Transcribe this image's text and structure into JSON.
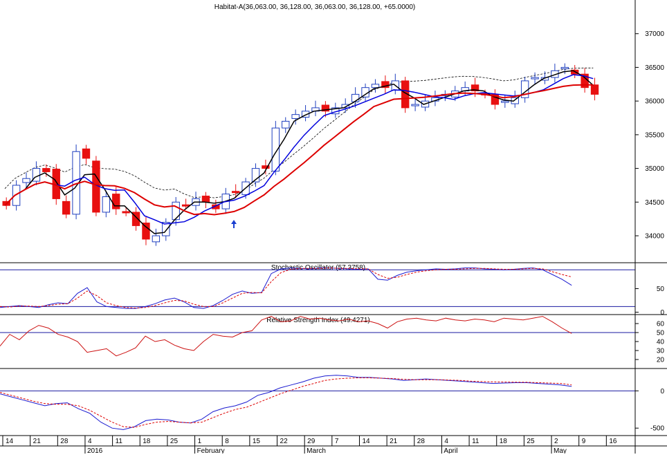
{
  "chart_data": [
    {
      "type": "candlestick",
      "title": "Habitat-A(36,063.00, 36,128.00, 36,063.00, 36,128.00, +65.0000)",
      "ylim": [
        33600,
        37500
      ],
      "y_ticks": [
        "34000",
        "34500",
        "35000",
        "35500",
        "36000",
        "36500",
        "37000"
      ],
      "series": [
        {
          "name": "close",
          "values": [
            34450,
            34750,
            34850,
            35000,
            34950,
            34550,
            34320,
            35250,
            35150,
            34350,
            34580,
            34400,
            34350,
            34150,
            33950,
            34000,
            34200,
            34500,
            34450,
            34550,
            34500,
            34400,
            34620,
            34650,
            34800,
            35000,
            35000,
            35600,
            35700,
            35800,
            35850,
            35900,
            35850,
            35900,
            35950,
            36100,
            36200,
            36250,
            36200,
            36300,
            35900,
            35950,
            36000,
            36050,
            36100,
            36150,
            36200,
            36150,
            36100,
            35950,
            36000,
            36050,
            36300,
            36350,
            36350,
            36450,
            36500,
            36400,
            36200,
            36100
          ]
        }
      ],
      "colors": {
        "up_candle": "#1f3fbf",
        "down_candle": "#e81010",
        "ma_fast": "#000000",
        "ma_mid": "#0000dd",
        "ma_slow": "#dd0000",
        "envelope": "#000000"
      }
    },
    {
      "type": "line",
      "title": "Stochastic Oscillator (57.3758)",
      "ylim": [
        0,
        100
      ],
      "y_ticks": [
        "0",
        "50"
      ],
      "reference_lines": [
        12,
        90
      ],
      "series": [
        {
          "values": [
            10,
            12,
            14,
            12,
            10,
            16,
            20,
            18,
            40,
            52,
            22,
            12,
            10,
            8,
            8,
            12,
            18,
            26,
            30,
            22,
            10,
            8,
            14,
            25,
            38,
            45,
            40,
            42,
            82,
            92,
            94,
            93,
            92,
            94,
            94,
            93,
            92,
            91,
            92,
            70,
            68,
            78,
            85,
            88,
            90,
            92,
            91,
            92,
            94,
            94,
            92,
            91,
            90,
            91,
            93,
            94,
            90,
            80,
            70,
            57
          ]
        },
        {
          "values": [
            12,
            11,
            13,
            13,
            12,
            14,
            17,
            18,
            30,
            45,
            35,
            20,
            14,
            10,
            9,
            10,
            14,
            20,
            25,
            24,
            17,
            12,
            12,
            20,
            30,
            40,
            42,
            41,
            65,
            84,
            91,
            93,
            93,
            93,
            94,
            93,
            93,
            92,
            92,
            80,
            72,
            74,
            80,
            85,
            88,
            90,
            91,
            91,
            92,
            93,
            93,
            92,
            91,
            91,
            92,
            93,
            92,
            86,
            80,
            75
          ]
        }
      ]
    },
    {
      "type": "line",
      "title": "Relative Strength Index (49.4271)",
      "ylim": [
        10,
        70
      ],
      "y_ticks": [
        "20",
        "30",
        "40",
        "50",
        "60"
      ],
      "reference_lines": [
        50
      ],
      "series": [
        {
          "values": [
            35,
            48,
            42,
            52,
            58,
            55,
            48,
            45,
            40,
            28,
            30,
            32,
            24,
            28,
            33,
            46,
            40,
            42,
            36,
            32,
            30,
            40,
            48,
            46,
            45,
            50,
            52,
            64,
            68,
            62,
            63,
            68,
            65,
            66,
            64,
            63,
            65,
            62,
            63,
            60,
            55,
            62,
            65,
            66,
            64,
            63,
            66,
            64,
            63,
            65,
            64,
            62,
            66,
            65,
            64,
            66,
            68,
            62,
            55,
            49
          ]
        }
      ]
    },
    {
      "type": "line",
      "title": "",
      "ylim": [
        -600,
        300
      ],
      "y_ticks": [
        "-500",
        "0"
      ],
      "reference_lines": [
        0
      ],
      "series": [
        {
          "values": [
            -40,
            -80,
            -120,
            -160,
            -200,
            -170,
            -160,
            -240,
            -300,
            -420,
            -500,
            -520,
            -480,
            -400,
            -380,
            -390,
            -420,
            -430,
            -380,
            -280,
            -230,
            -200,
            -150,
            -60,
            -20,
            40,
            80,
            120,
            170,
            200,
            210,
            200,
            180,
            180,
            170,
            160,
            140,
            150,
            160,
            150,
            140,
            130,
            120,
            110,
            100,
            105,
            110,
            110,
            100,
            90,
            80,
            60
          ]
        },
        {
          "values": [
            -20,
            -60,
            -100,
            -140,
            -170,
            -180,
            -180,
            -200,
            -260,
            -340,
            -420,
            -480,
            -490,
            -450,
            -420,
            -410,
            -420,
            -430,
            -420,
            -360,
            -300,
            -250,
            -220,
            -160,
            -100,
            -40,
            10,
            60,
            100,
            140,
            160,
            170,
            175,
            175,
            170,
            165,
            155,
            150,
            150,
            150,
            145,
            140,
            130,
            125,
            120,
            118,
            116,
            115,
            110,
            105,
            100,
            80
          ]
        }
      ]
    }
  ],
  "x_axis": {
    "day_ticks": [
      "14",
      "21",
      "28",
      "4",
      "11",
      "18",
      "25",
      "1",
      "8",
      "15",
      "22",
      "29",
      "7",
      "14",
      "21",
      "28",
      "4",
      "11",
      "18",
      "25",
      "2",
      "9",
      "16"
    ],
    "month_labels": [
      "2016",
      "February",
      "March",
      "April",
      "May"
    ]
  }
}
